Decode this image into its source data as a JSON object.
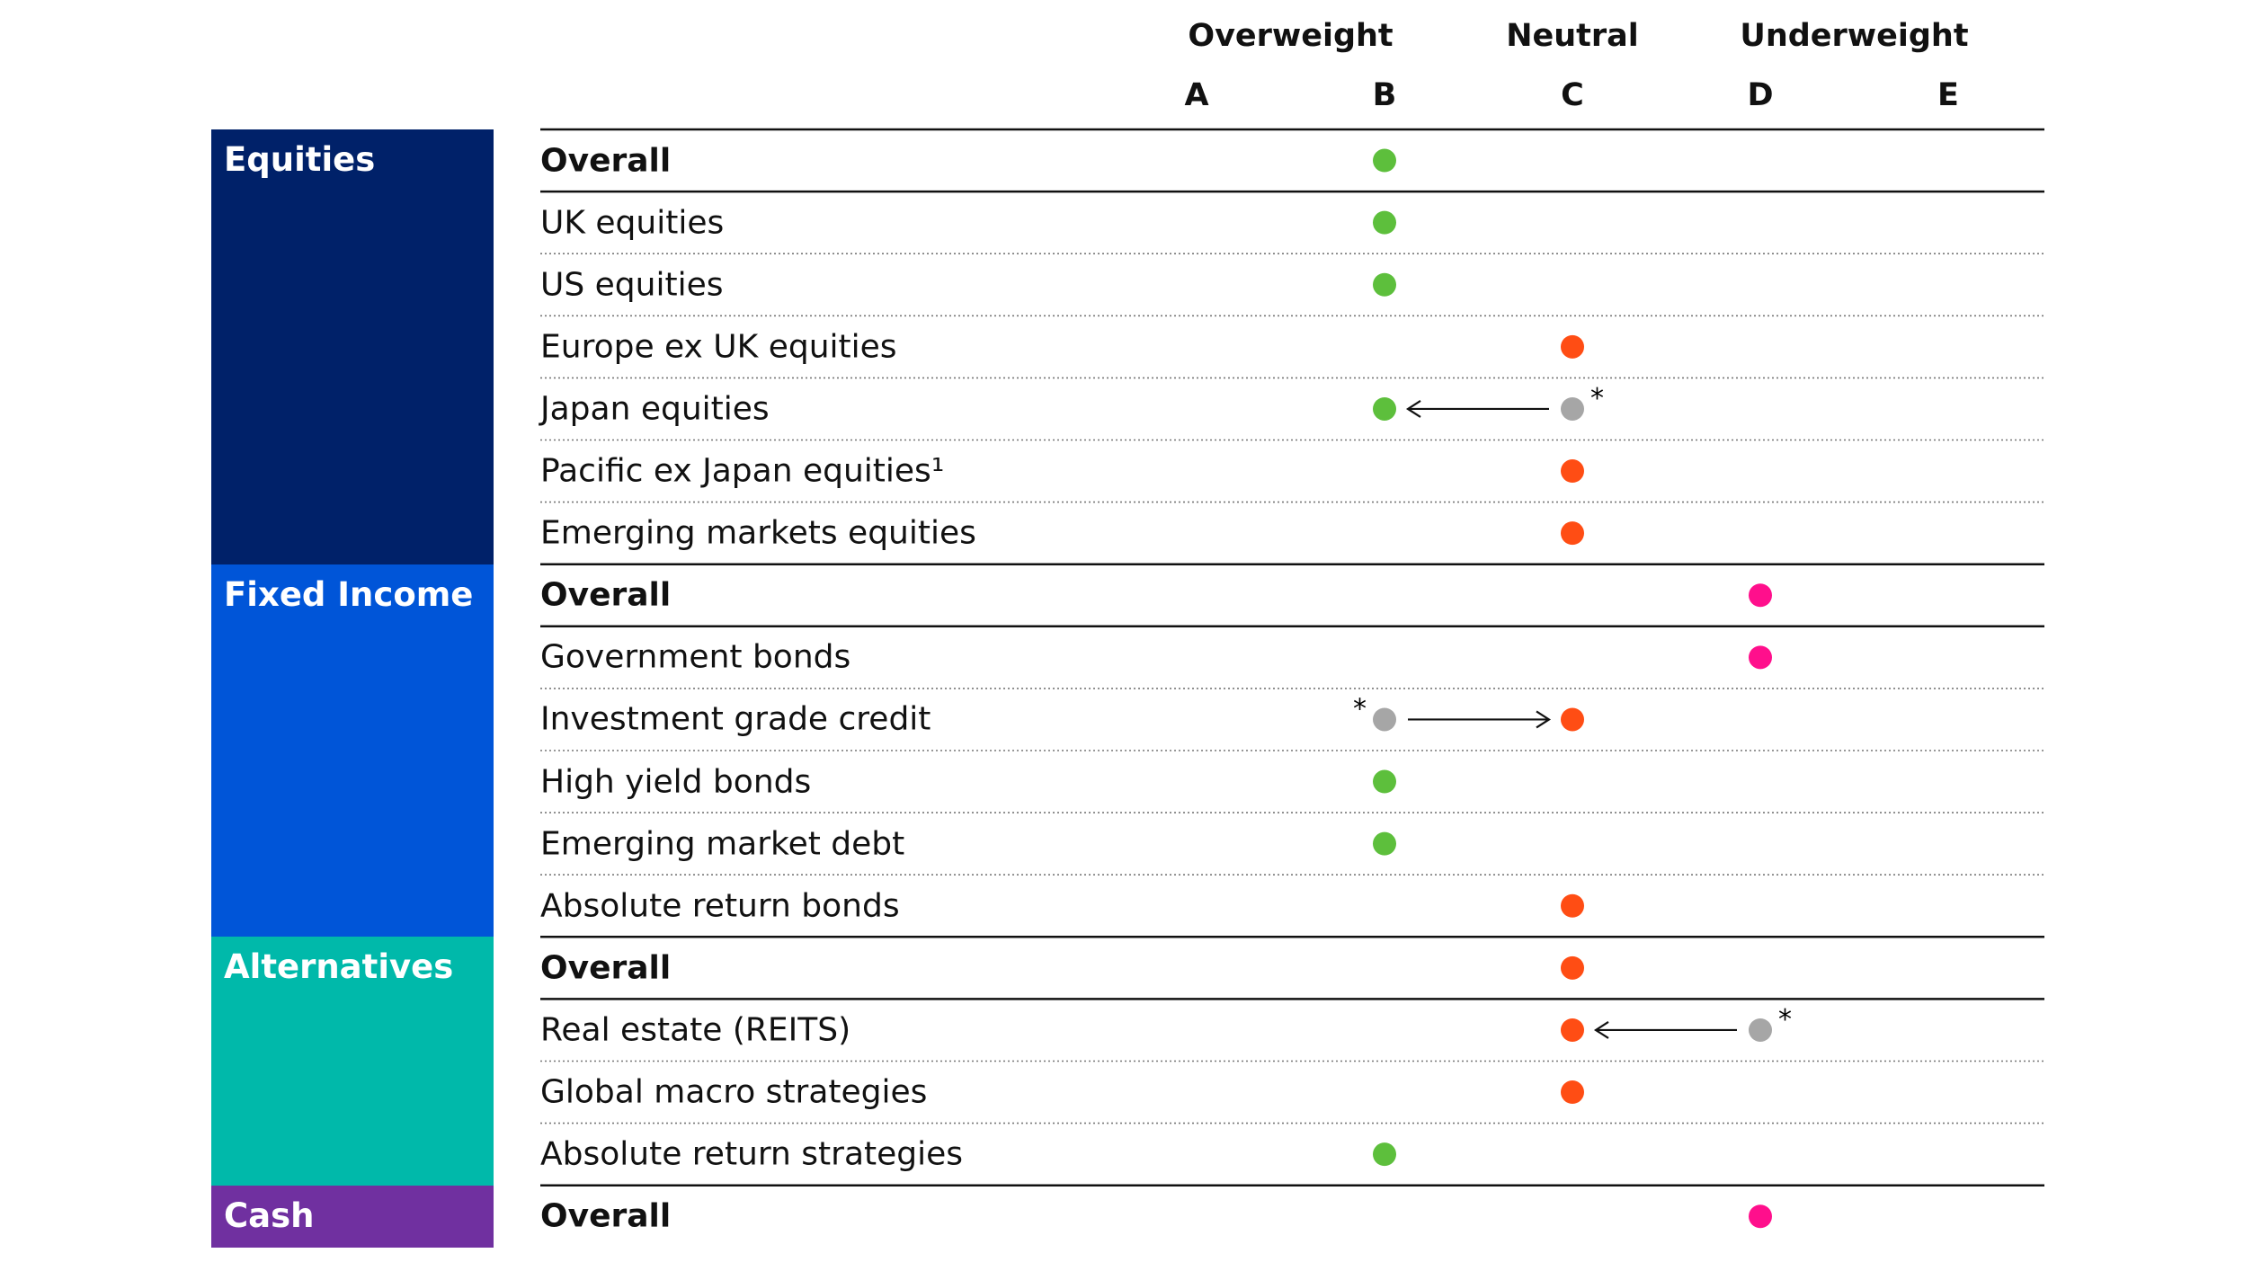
{
  "chart_data": {
    "type": "table",
    "group_headers": [
      {
        "label": "Overweight",
        "col": 0.5
      },
      {
        "label": "Neutral",
        "col": 2
      },
      {
        "label": "Underweight",
        "col": 3.5
      }
    ],
    "columns": [
      "A",
      "B",
      "C",
      "D",
      "E"
    ],
    "sections": [
      {
        "name": "Equities",
        "color": "#002169",
        "rows": [
          {
            "label": "Overall",
            "bold": true,
            "col": "B",
            "color": "#5dbf3c"
          },
          {
            "label": "UK equities",
            "col": "B",
            "color": "#5dbf3c"
          },
          {
            "label": "US equities",
            "col": "B",
            "color": "#5dbf3c"
          },
          {
            "label": "Europe ex UK equities",
            "col": "C",
            "color": "#ff4d14"
          },
          {
            "label": "Japan equities",
            "col": "B",
            "color": "#5dbf3c",
            "prev_col": "C",
            "prev_marker": "*"
          },
          {
            "label": "Pacific ex Japan equities¹",
            "col": "C",
            "color": "#ff4d14"
          },
          {
            "label": "Emerging markets equities",
            "col": "C",
            "color": "#ff4d14"
          }
        ]
      },
      {
        "name": "Fixed Income",
        "color": "#0055d8",
        "rows": [
          {
            "label": "Overall",
            "bold": true,
            "col": "D",
            "color": "#ff0f8c"
          },
          {
            "label": "Government bonds",
            "col": "D",
            "color": "#ff0f8c"
          },
          {
            "label": "Investment grade credit",
            "col": "C",
            "color": "#ff4d14",
            "prev_col": "B",
            "prev_marker": "*"
          },
          {
            "label": "High yield bonds",
            "col": "B",
            "color": "#5dbf3c"
          },
          {
            "label": "Emerging market debt",
            "col": "B",
            "color": "#5dbf3c"
          },
          {
            "label": "Absolute return bonds",
            "col": "C",
            "color": "#ff4d14"
          }
        ]
      },
      {
        "name": "Alternatives",
        "color": "#00b9aa",
        "rows": [
          {
            "label": "Overall",
            "bold": true,
            "col": "C",
            "color": "#ff4d14"
          },
          {
            "label": "Real estate (REITS)",
            "col": "C",
            "color": "#ff4d14",
            "prev_col": "D",
            "prev_marker": "*"
          },
          {
            "label": "Global macro strategies",
            "col": "C",
            "color": "#ff4d14"
          },
          {
            "label": "Absolute return strategies",
            "col": "B",
            "color": "#5dbf3c"
          }
        ]
      },
      {
        "name": "Cash",
        "color": "#7030a0",
        "rows": [
          {
            "label": "Overall",
            "bold": true,
            "col": "D",
            "color": "#ff0f8c"
          }
        ]
      }
    ],
    "previous_color": "#a6a6a6"
  }
}
